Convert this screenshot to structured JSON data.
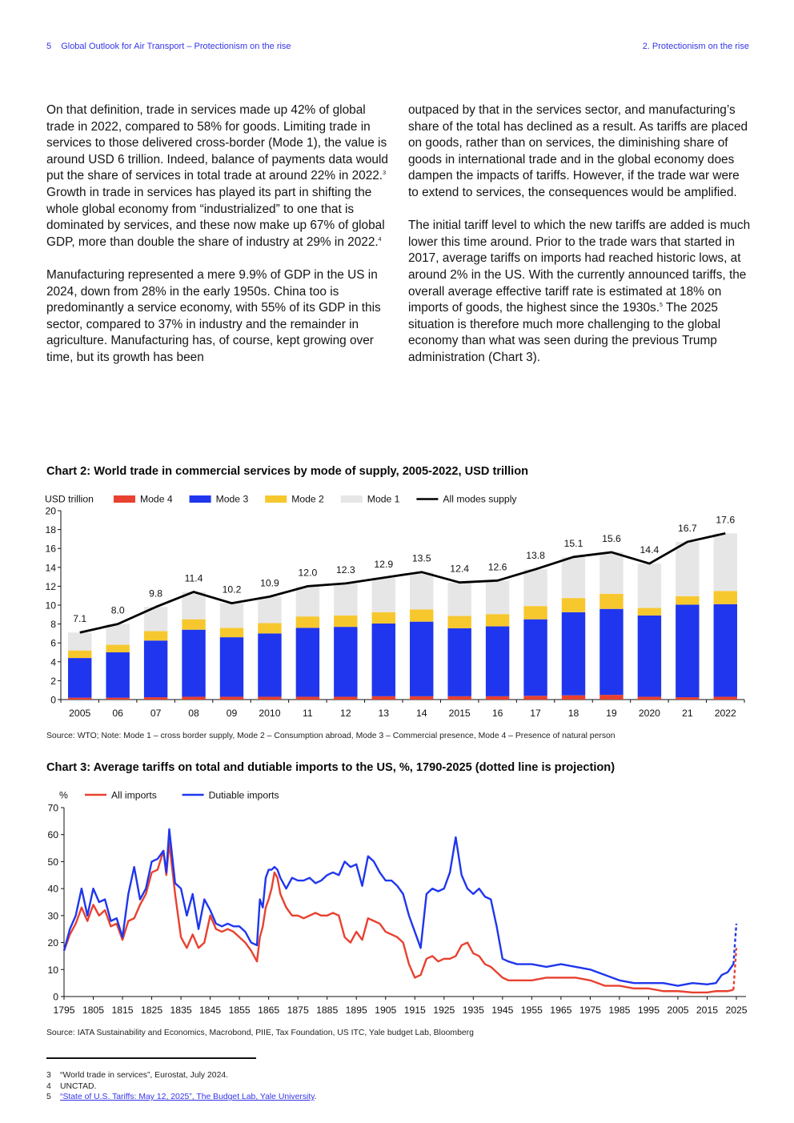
{
  "header": {
    "page_number": "5",
    "doc_title": "Global Outlook for Air Transport – Protectionism on the rise",
    "section": "2.  Protectionism on the rise"
  },
  "body_left": {
    "p1": "On that definition, trade in services made up 42% of global trade in 2022, compared to 58% for goods. Limiting trade in services to those delivered cross-border (Mode 1), the value is around USD 6 trillion. Indeed, balance of payments data would put the share of services in total trade at around 22% in 2022.",
    "p1_ref": "3",
    "p1b": " Growth in trade in services has played its part in shifting the whole global economy from “industrialized” to one that is dominated by services, and these now make up 67% of global GDP, more than double the share of industry at 29% in 2022.",
    "p1b_ref": "4",
    "p2": "Manufacturing represented a mere 9.9% of GDP in the US in 2024, down from 28% in the early 1950s. China too is predominantly a service economy, with 55% of its GDP in this sector, compared to 37% in industry and the remainder in agriculture. Manufacturing has, of course, kept growing over time, but its growth has been"
  },
  "body_right": {
    "p1": "outpaced by that in the services sector, and manufacturing’s share of the total has declined as a result. As tariffs are placed on goods, rather than on services, the diminishing share of goods in international trade and in the global economy does dampen the impacts of tariffs. However, if the trade war were to extend to services, the consequences would be amplified.",
    "p2": "The initial tariff level to which the new tariffs are added is much lower this time around. Prior to the trade wars that started in 2017, average tariffs on imports had reached historic lows, at around 2% in the US. With the currently announced tariffs, the overall average effective tariff rate is estimated at 18% on imports of goods, the highest since the 1930s.",
    "p2_ref": "5",
    "p2b": " The 2025 situation is therefore much more challenging to the global economy than what was seen during the previous Trump administration (Chart 3)."
  },
  "chart2": {
    "title": "Chart 2: World trade in commercial services by mode of supply, 2005-2022, USD trillion",
    "source": "Source: WTO; Note: Mode 1 – cross border supply, Mode 2 – Consumption abroad, Mode 3 – Commercial presence, Mode 4 – Presence of natural person"
  },
  "chart3": {
    "title": "Chart 3: Average tariffs on total and dutiable imports to the US, %, 1790-2025 (dotted line is projection)",
    "source": "Source: IATA Sustainability and Economics, Macrobond, PIIE, Tax Foundation, US ITC, Yale budget Lab, Bloomberg"
  },
  "chart_data": [
    {
      "type": "bar",
      "stacked": true,
      "unit_label": "USD trillion",
      "categories": [
        "2005",
        "06",
        "07",
        "08",
        "09",
        "2010",
        "11",
        "12",
        "13",
        "14",
        "2015",
        "16",
        "17",
        "18",
        "19",
        "2020",
        "21",
        "2022"
      ],
      "ylim": [
        0,
        20
      ],
      "yticks": [
        0,
        2,
        4,
        6,
        8,
        10,
        12,
        14,
        16,
        18,
        20
      ],
      "grid": false,
      "legend_position": "top-left",
      "series": [
        {
          "name": "Mode 4",
          "color": "#e8412f",
          "values": [
            0.2,
            0.2,
            0.25,
            0.3,
            0.3,
            0.3,
            0.3,
            0.3,
            0.35,
            0.35,
            0.35,
            0.35,
            0.4,
            0.45,
            0.5,
            0.3,
            0.25,
            0.3
          ]
        },
        {
          "name": "Mode 3",
          "color": "#1f36ee",
          "values": [
            4.2,
            4.8,
            6.0,
            7.1,
            6.3,
            6.7,
            7.3,
            7.4,
            7.7,
            7.9,
            7.2,
            7.4,
            8.1,
            8.8,
            9.1,
            8.6,
            9.8,
            9.8
          ]
        },
        {
          "name": "Mode 2",
          "color": "#f7c72e",
          "values": [
            0.8,
            0.8,
            1.0,
            1.1,
            1.0,
            1.1,
            1.2,
            1.2,
            1.2,
            1.3,
            1.3,
            1.3,
            1.4,
            1.5,
            1.6,
            0.8,
            0.9,
            1.4
          ]
        },
        {
          "name": "Mode 1",
          "color": "#e6e6e6",
          "values": [
            1.9,
            2.2,
            2.55,
            2.9,
            2.6,
            2.8,
            3.2,
            3.4,
            3.65,
            3.95,
            3.55,
            3.55,
            3.9,
            4.35,
            4.4,
            4.7,
            5.75,
            6.1
          ]
        }
      ],
      "line": {
        "name": "All modes supply",
        "color": "#000000",
        "values": [
          7.1,
          8.0,
          9.8,
          11.4,
          10.2,
          10.9,
          12.0,
          12.3,
          12.9,
          13.5,
          12.4,
          12.6,
          13.8,
          15.1,
          15.6,
          14.4,
          16.7,
          17.6
        ]
      },
      "data_labels": [
        "7.1",
        "8.0",
        "9.8",
        "11.4",
        "10.2",
        "10.9",
        "12.0",
        "12.3",
        "12.9",
        "13.5",
        "12.4",
        "12.6",
        "13.8",
        "15.1",
        "15.6",
        "14.4",
        "16.7",
        "17.6"
      ]
    },
    {
      "type": "line",
      "unit_label": "%",
      "xlim": [
        1795,
        2025
      ],
      "ylim": [
        0,
        70
      ],
      "yticks": [
        0,
        10,
        20,
        30,
        40,
        50,
        60,
        70
      ],
      "xticks": [
        1795,
        1805,
        1815,
        1825,
        1835,
        1845,
        1855,
        1865,
        1875,
        1885,
        1895,
        1905,
        1915,
        1925,
        1935,
        1945,
        1955,
        1965,
        1975,
        1985,
        1995,
        2005,
        2015,
        2025
      ],
      "grid": false,
      "legend_position": "top-left",
      "series": [
        {
          "name": "All imports",
          "color": "#e8412f",
          "x": [
            1795,
            1797,
            1799,
            1801,
            1803,
            1805,
            1807,
            1809,
            1811,
            1813,
            1815,
            1817,
            1819,
            1821,
            1823,
            1825,
            1827,
            1829,
            1830,
            1831,
            1833,
            1835,
            1837,
            1839,
            1841,
            1843,
            1845,
            1847,
            1849,
            1851,
            1853,
            1855,
            1857,
            1859,
            1861,
            1862,
            1863,
            1864,
            1865,
            1866,
            1867,
            1868,
            1869,
            1871,
            1873,
            1875,
            1877,
            1879,
            1881,
            1883,
            1885,
            1887,
            1889,
            1891,
            1893,
            1895,
            1897,
            1899,
            1901,
            1903,
            1905,
            1907,
            1909,
            1911,
            1913,
            1915,
            1917,
            1919,
            1921,
            1923,
            1925,
            1927,
            1929,
            1931,
            1933,
            1935,
            1937,
            1939,
            1941,
            1943,
            1945,
            1947,
            1950,
            1955,
            1960,
            1965,
            1970,
            1975,
            1980,
            1985,
            1990,
            1995,
            2000,
            2005,
            2010,
            2015,
            2018,
            2020,
            2022,
            2024
          ],
          "y": [
            17,
            23,
            27,
            33,
            28,
            34,
            30,
            32,
            26,
            27,
            21,
            28,
            29,
            34,
            38,
            46,
            47,
            54,
            45,
            57,
            38,
            22,
            18,
            23,
            18,
            20,
            30,
            25,
            24,
            25,
            24,
            22,
            20,
            17,
            13,
            22,
            26,
            33,
            36,
            40,
            46,
            44,
            38,
            33,
            30,
            30,
            29,
            30,
            31,
            30,
            30,
            31,
            30,
            22,
            20,
            24,
            21,
            29,
            28,
            27,
            24,
            23,
            22,
            20,
            12,
            7,
            8,
            14,
            15,
            13,
            14,
            14,
            15,
            19,
            20,
            16,
            15,
            12,
            11,
            9,
            7,
            6,
            6,
            6,
            7,
            7,
            7,
            6,
            4,
            4,
            3,
            3,
            2,
            2,
            1.5,
            1.5,
            2,
            2,
            2,
            2.5
          ]
        },
        {
          "name": "Dutiable imports",
          "color": "#1f36ee",
          "x": [
            1795,
            1797,
            1799,
            1801,
            1803,
            1805,
            1807,
            1809,
            1811,
            1813,
            1815,
            1817,
            1819,
            1821,
            1823,
            1825,
            1827,
            1829,
            1830,
            1831,
            1833,
            1835,
            1837,
            1839,
            1841,
            1843,
            1845,
            1847,
            1849,
            1851,
            1853,
            1855,
            1857,
            1859,
            1861,
            1862,
            1863,
            1864,
            1865,
            1866,
            1867,
            1868,
            1869,
            1871,
            1873,
            1875,
            1877,
            1879,
            1881,
            1883,
            1885,
            1887,
            1889,
            1891,
            1893,
            1895,
            1897,
            1899,
            1901,
            1903,
            1905,
            1907,
            1909,
            1911,
            1913,
            1915,
            1917,
            1919,
            1921,
            1923,
            1925,
            1927,
            1929,
            1931,
            1933,
            1935,
            1937,
            1939,
            1941,
            1943,
            1945,
            1947,
            1950,
            1955,
            1960,
            1965,
            1970,
            1975,
            1980,
            1985,
            1990,
            1995,
            2000,
            2005,
            2010,
            2015,
            2018,
            2020,
            2022,
            2024
          ],
          "y": [
            17,
            25,
            30,
            40,
            30,
            40,
            35,
            36,
            28,
            29,
            22,
            38,
            48,
            36,
            40,
            50,
            51,
            54,
            46,
            62,
            42,
            40,
            30,
            38,
            25,
            36,
            32,
            27,
            26,
            27,
            26,
            26,
            24,
            20,
            19,
            36,
            33,
            44,
            47,
            47,
            48,
            47,
            44,
            40,
            44,
            43,
            43,
            44,
            42,
            43,
            45,
            46,
            45,
            50,
            48,
            49,
            41,
            52,
            50,
            46,
            43,
            43,
            41,
            38,
            30,
            24,
            18,
            38,
            40,
            39,
            40,
            46,
            59,
            45,
            40,
            38,
            40,
            37,
            36,
            26,
            14,
            13,
            12,
            12,
            11,
            12,
            11,
            10,
            8,
            6,
            5,
            5,
            5,
            4,
            5,
            4.5,
            5,
            8,
            9,
            12
          ]
        },
        {
          "name": "All imports (projection)",
          "color": "#e8412f",
          "dashed": true,
          "x": [
            2024,
            2025
          ],
          "y": [
            2.5,
            18
          ]
        },
        {
          "name": "Dutiable imports (projection)",
          "color": "#1f36ee",
          "dashed": true,
          "x": [
            2024,
            2025
          ],
          "y": [
            12,
            27
          ]
        }
      ]
    }
  ],
  "footnotes": [
    {
      "num": "3",
      "text": "“World trade in services”, Eurostat, July 2024."
    },
    {
      "num": "4",
      "text": "UNCTAD."
    },
    {
      "num": "5",
      "text": "“State of U.S. Tariffs: May 12, 2025”, The Budget Lab, Yale University",
      "tail": "."
    }
  ]
}
